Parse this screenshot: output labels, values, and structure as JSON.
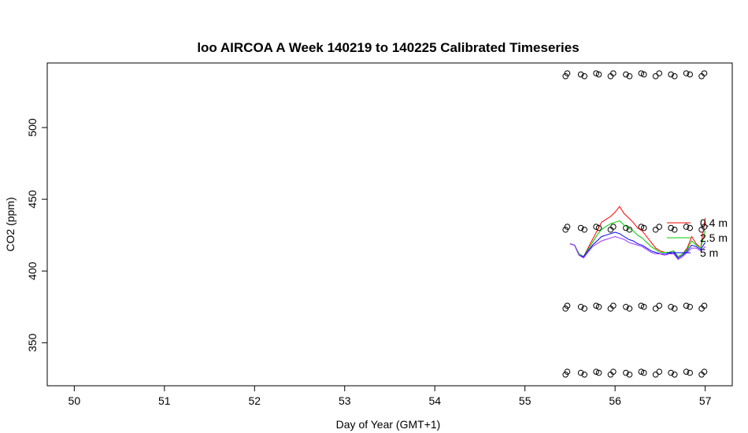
{
  "chart_data": {
    "type": "line",
    "title": "loo AIRCOA A  Week 140219 to 140225  Calibrated Timeseries",
    "xlabel": "Day of Year (GMT+1)",
    "ylabel": "CO2 (ppm)",
    "xlim": [
      49.7,
      57.3
    ],
    "ylim": [
      320,
      545
    ],
    "x_ticks": [
      50,
      51,
      52,
      53,
      54,
      55,
      56,
      57
    ],
    "x_tick_labels": [
      "50",
      "51",
      "52",
      "53",
      "54",
      "55",
      "56",
      "57"
    ],
    "y_ticks": [
      350,
      400,
      450,
      500
    ],
    "y_tick_labels": [
      "350",
      "400",
      "450",
      "500"
    ],
    "grid": false,
    "legend": {
      "placement": "right",
      "entries": [
        "0.4 m",
        "2.5 m",
        "5 m"
      ]
    },
    "series": [
      {
        "name": "0.4 m",
        "color": "#ff0000",
        "x": [
          55.5,
          55.55,
          55.6,
          55.65,
          55.7,
          55.75,
          55.8,
          55.85,
          55.9,
          55.95,
          56.0,
          56.05,
          56.1,
          56.15,
          56.2,
          56.25,
          56.3,
          56.35,
          56.4,
          56.45,
          56.5,
          56.55,
          56.6,
          56.65,
          56.7,
          56.75,
          56.8,
          56.85,
          56.9,
          56.95,
          57.0
        ],
        "y": [
          419,
          418,
          412,
          410,
          416,
          422,
          428,
          434,
          436,
          438,
          441,
          445,
          440,
          437,
          434,
          430,
          428,
          424,
          420,
          416,
          414,
          413,
          413,
          414,
          410,
          412,
          416,
          424,
          419,
          416,
          437
        ]
      },
      {
        "name": "2.5 m",
        "color": "#00cc00",
        "x": [
          55.5,
          55.55,
          55.6,
          55.65,
          55.7,
          55.75,
          55.8,
          55.85,
          55.9,
          55.95,
          56.0,
          56.05,
          56.1,
          56.15,
          56.2,
          56.25,
          56.3,
          56.35,
          56.4,
          56.45,
          56.5,
          56.55,
          56.6,
          56.65,
          56.7,
          56.75,
          56.8,
          56.85,
          56.9,
          56.95,
          57.0
        ],
        "y": [
          419,
          418,
          412,
          410,
          415,
          420,
          425,
          429,
          431,
          433,
          434,
          435,
          432,
          430,
          428,
          425,
          423,
          420,
          417,
          415,
          413,
          413,
          413,
          414,
          410,
          412,
          415,
          421,
          418,
          416,
          428
        ]
      },
      {
        "name": "5 m",
        "color": "#0000ff",
        "x": [
          55.5,
          55.55,
          55.6,
          55.65,
          55.7,
          55.75,
          55.8,
          55.85,
          55.9,
          55.95,
          56.0,
          56.05,
          56.1,
          56.15,
          56.2,
          56.25,
          56.3,
          56.35,
          56.4,
          56.45,
          56.5,
          56.55,
          56.6,
          56.65,
          56.7,
          56.75,
          56.8,
          56.85,
          56.9,
          56.95,
          57.0
        ],
        "y": [
          419,
          418,
          411,
          410,
          414,
          418,
          421,
          424,
          425,
          426,
          427,
          426,
          424,
          422,
          421,
          419,
          418,
          416,
          414,
          413,
          412,
          412,
          412,
          413,
          409,
          411,
          414,
          418,
          417,
          415,
          420
        ]
      },
      {
        "name": "",
        "color": "#9933ff",
        "x": [
          55.5,
          55.55,
          55.6,
          55.65,
          55.7,
          55.75,
          55.8,
          55.85,
          55.9,
          55.95,
          56.0,
          56.05,
          56.1,
          56.15,
          56.2,
          56.25,
          56.3,
          56.35,
          56.4,
          56.45,
          56.5,
          56.55,
          56.6,
          56.65,
          56.7,
          56.75,
          56.8,
          56.85,
          56.9,
          56.95,
          57.0
        ],
        "y": [
          419,
          418,
          411,
          409,
          413,
          417,
          419,
          421,
          422,
          423,
          424,
          423,
          422,
          420,
          419,
          418,
          417,
          415,
          413,
          412,
          412,
          411,
          412,
          412,
          408,
          410,
          413,
          416,
          416,
          414,
          417
        ]
      }
    ],
    "reference_points": {
      "marker": "open-circle",
      "x": [
        55.45,
        55.47,
        55.62,
        55.66,
        55.79,
        55.82,
        55.95,
        55.98,
        56.12,
        56.16,
        56.29,
        56.32,
        56.45,
        56.49,
        56.62,
        56.66,
        56.79,
        56.83,
        56.96,
        56.99
      ],
      "levels": [
        537,
        430,
        375,
        329
      ]
    }
  }
}
